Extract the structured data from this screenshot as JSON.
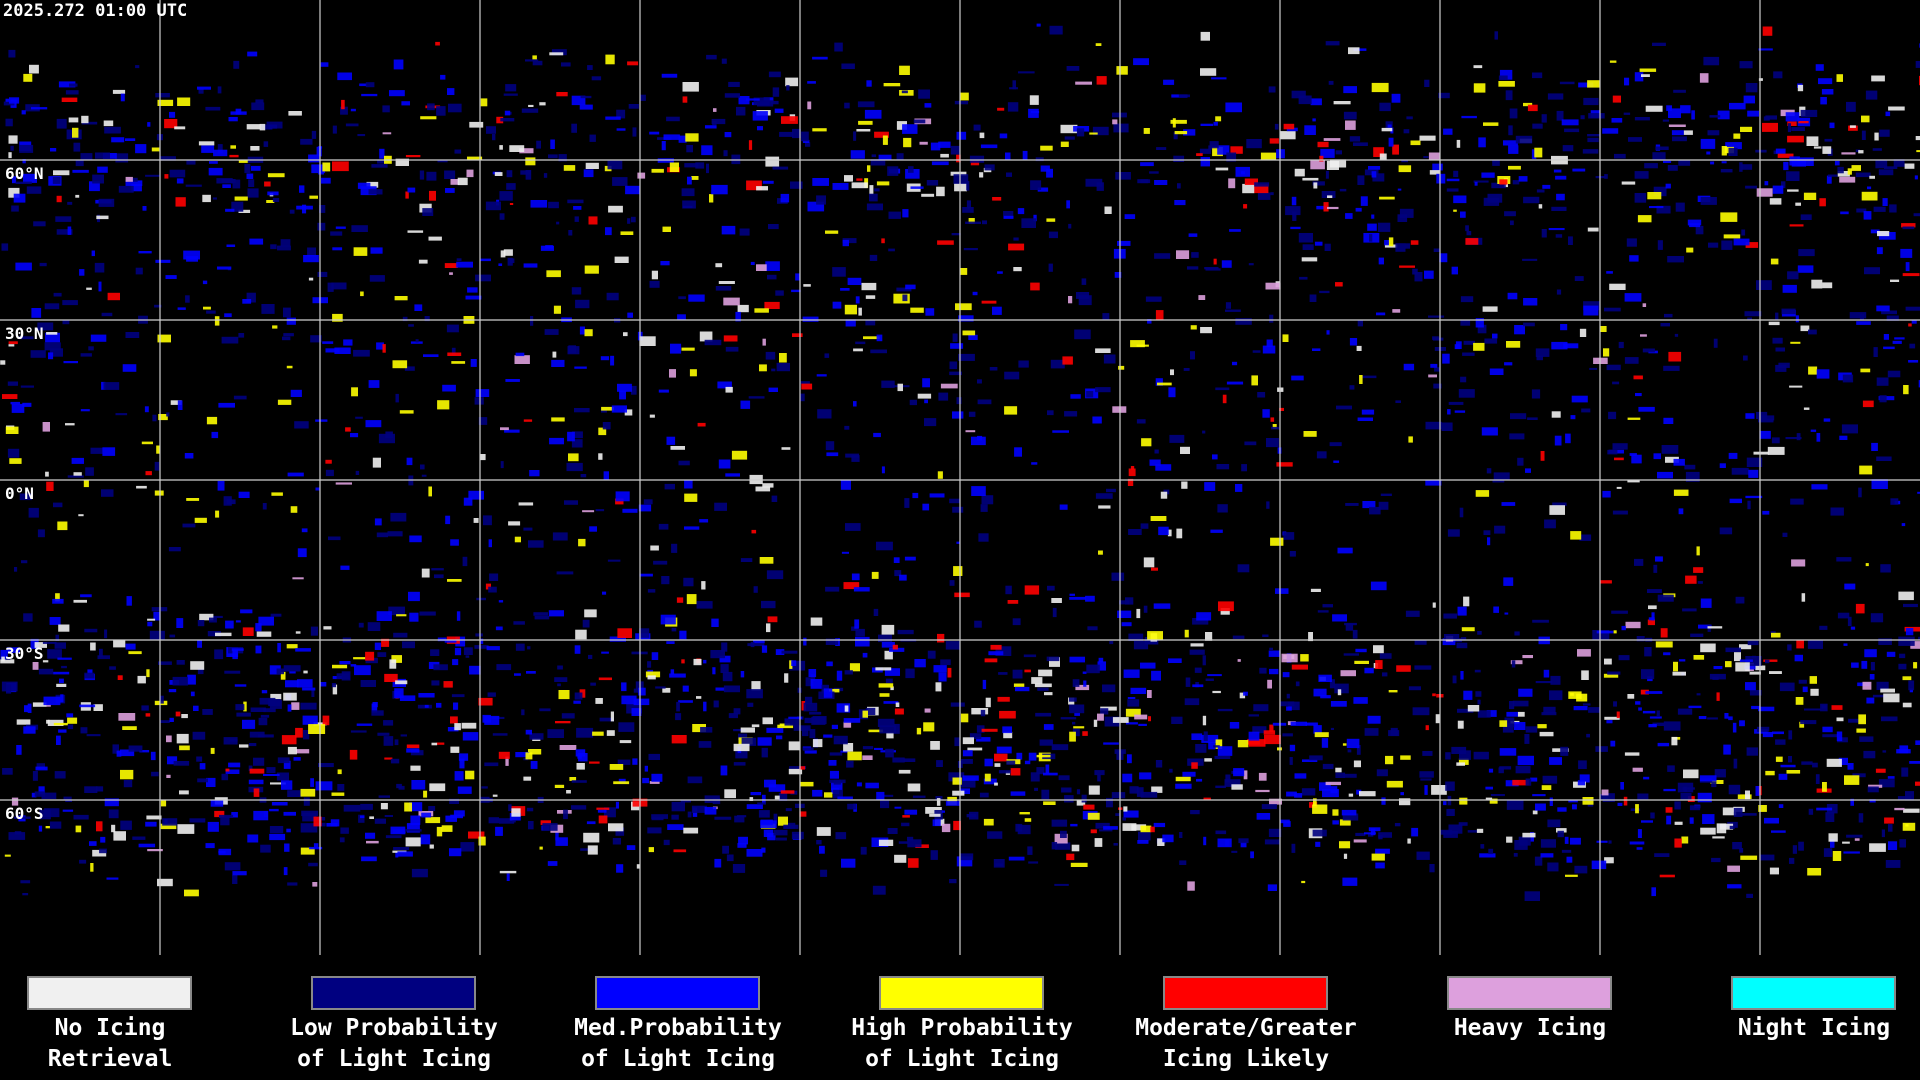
{
  "timestamp": "2025.272 01:00 UTC",
  "latitude_labels": [
    "60°N",
    "30°N",
    "0°N",
    "30°S",
    "60°S"
  ],
  "legend": [
    {
      "color": "#f0f0f0",
      "lines": [
        "No Icing",
        "Retrieval"
      ]
    },
    {
      "color": "#000080",
      "lines": [
        "Low Probability",
        "of Light Icing"
      ]
    },
    {
      "color": "#0000ff",
      "lines": [
        "Med.Probability",
        "of Light Icing"
      ]
    },
    {
      "color": "#ffff00",
      "lines": [
        "High Probability",
        "of Light Icing"
      ]
    },
    {
      "color": "#ff0000",
      "lines": [
        "Moderate/Greater",
        "Icing Likely"
      ]
    },
    {
      "color": "#dda0dd",
      "lines": [
        "Heavy Icing"
      ]
    },
    {
      "color": "#00ffff",
      "lines": [
        "Night Icing"
      ]
    }
  ]
}
